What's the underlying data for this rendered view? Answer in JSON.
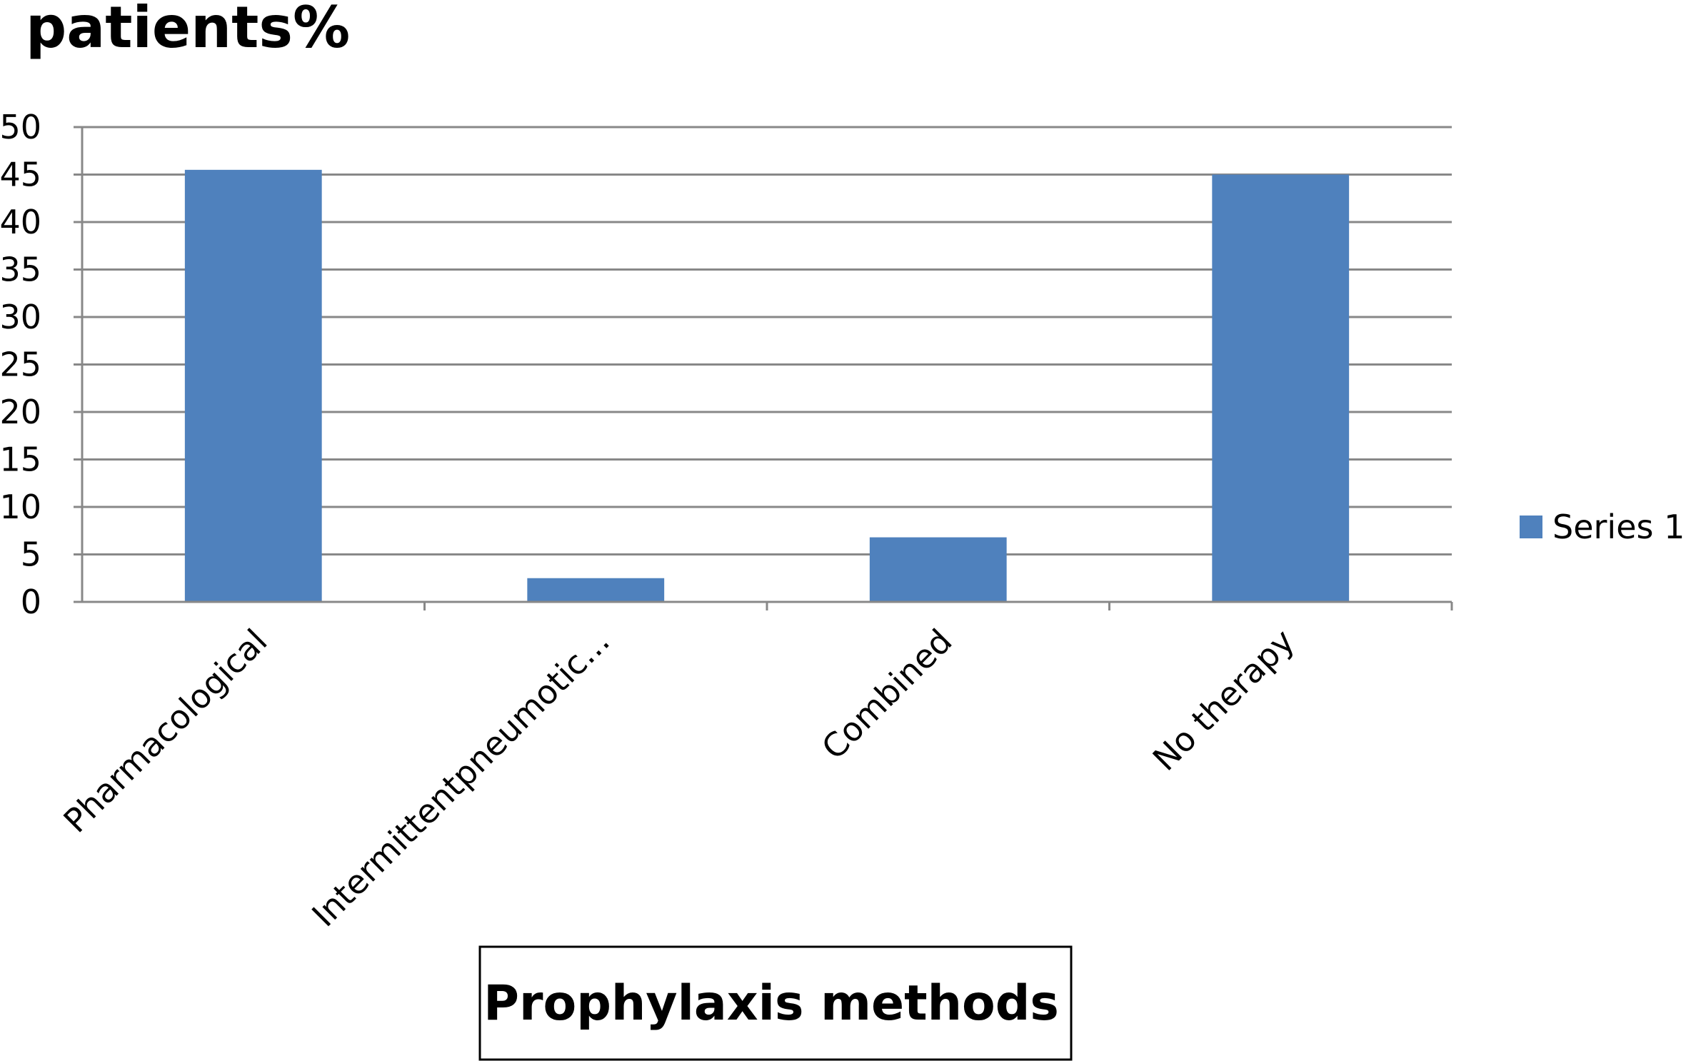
{
  "chart_data": {
    "type": "bar",
    "ylabel": "patients%",
    "xlabel": "Prophylaxis methods",
    "categories": [
      "Pharmacological",
      "Intermittentpneumotic...",
      "Combined",
      "No therapy"
    ],
    "series": [
      {
        "name": "Series 1",
        "values": [
          45.5,
          2.5,
          6.8,
          45.0
        ],
        "color": "#4f81bd"
      }
    ],
    "ylim": [
      0,
      50
    ],
    "yticks": [
      "0",
      "5",
      "10",
      "15",
      "20",
      "25",
      "30",
      "35",
      "40",
      "45",
      "50"
    ],
    "grid": true,
    "legend_position": "right"
  }
}
